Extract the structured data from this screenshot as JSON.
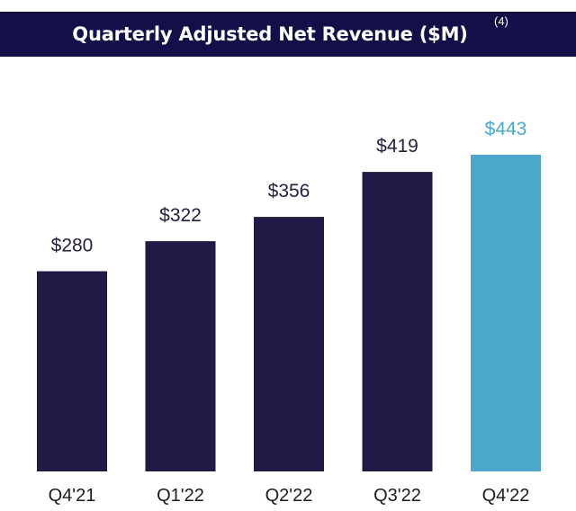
{
  "title": "Quarterly Adjusted Net Revenue ($M)",
  "title_note": "(4)",
  "colors": {
    "banner": "#130f48",
    "bar_default": "#201a47",
    "bar_highlight": "#4ba8cb",
    "label_default": "#231f3d",
    "label_highlight": "#4ba8cb",
    "axis_text": "#1c1c1c"
  },
  "chart_data": {
    "type": "bar",
    "title": "Quarterly Adjusted Net Revenue ($M)",
    "categories": [
      "Q4'21",
      "Q1'22",
      "Q2'22",
      "Q3'22",
      "Q4'22"
    ],
    "values": [
      280,
      322,
      356,
      419,
      443
    ],
    "value_labels": [
      "$280",
      "$322",
      "$356",
      "$419",
      "$443"
    ],
    "highlight_index": 4,
    "xlabel": "",
    "ylabel": "",
    "ylim": [
      0,
      443
    ],
    "grid": false,
    "legend": "none"
  }
}
